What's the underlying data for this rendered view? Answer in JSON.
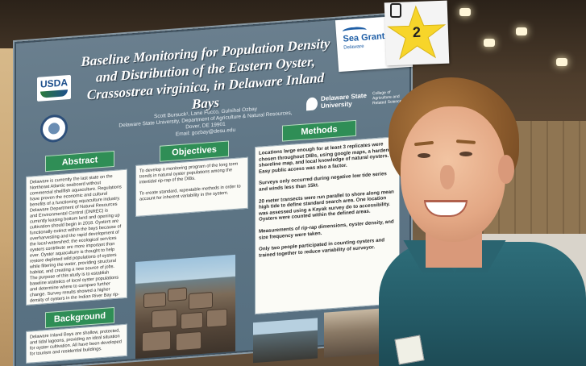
{
  "poster": {
    "title_line1": "Baseline Monitoring for Population Density",
    "title_line2": "and Distribution of the Eastern Oyster,",
    "title_line3": "Crassostrea virginica, in Delaware Inland Bays",
    "authors": "Scott Bursuck¹, Lane Fucco, Gulnihal Ozbay",
    "affiliation": "Delaware State University, Department of Agriculture & Natural Resources, Dover, DE 19901",
    "email": "Email: gozbay@desu.edu",
    "usda_label": "USDA",
    "university_name": "Delaware State University",
    "college_name": "College of Agriculture and Related Sciences",
    "sections": {
      "abstract_header": "Abstract",
      "abstract_text": "Delaware is currently the last state on the Northeast Atlantic seaboard without commercial shellfish aquaculture. Regulations have proven the economic and cultural benefits of a functioning aquaculture industry. Delaware Department of Natural Resources and Environmental Control (DNREC) is currently leasing bottom land and opening up cultivation should begin in 2018. Oysters are functionally extinct within the bays because of overharvesting and the rapid development of the local watershed; the ecological services oysters contribute are more important than ever. Oyster aquaculture is thought to help restore depleted wild populations of oysters while filtering the water, providing structural habitat, and creating a new source of jobs. The purpose of this study is to establish baseline statistics of local oyster populations and determine where to compare further change. Survey results showed a higher density of oysters in the Indian River Bay rip-rap. The results open up many more questions as to the drivers of settlement location and origin of native populations.",
      "objectives_header": "Objectives",
      "objectives_item1": "To develop a monitoring program of the long term trends in natural oyster populations among the intertidal rip-rap of the DIBs.",
      "objectives_item2": "To create standard, repeatable methods in order to account for inherent variability in the system.",
      "background_header": "Background",
      "background_text": "Delaware Inland Bays are shallow, protected, and tidal lagoons, providing an ideal situation for oyster cultivation. All have been developed for tourism and residential buildings.",
      "methods_header": "Methods",
      "methods_item1": "Locations large enough for at least 3 replicates were chosen throughout DIBs, using google maps, a hardened shoreline map, and local knowledge of natural oysters. Easy public access was also a factor.",
      "methods_item2": "Surveys only occurred during negative low tide series and winds less than 15kt.",
      "methods_item3": "20 meter transects were run parallel to shore along mean high tide to define standard search area. One location was assessed using a Kayak survey do to accessibility. Oysters were counted within the defined areas.",
      "methods_item4": "Measurements of rip-rap dimensions, oyster density, and size frequency were taken.",
      "methods_item5": "Only two people participated in counting oysters and trained together to reduce variability of surveyor."
    }
  },
  "sea_grant_card": {
    "brand": "Sea Grant",
    "sub": "Delaware"
  },
  "star_card": {
    "number": "2"
  },
  "colors": {
    "poster_bg": "#5f7686",
    "header_green": "#2f8e56",
    "star_yellow": "#f7d52a",
    "shirt_teal": "#245a66",
    "hair_brown": "#8a5a2c"
  }
}
